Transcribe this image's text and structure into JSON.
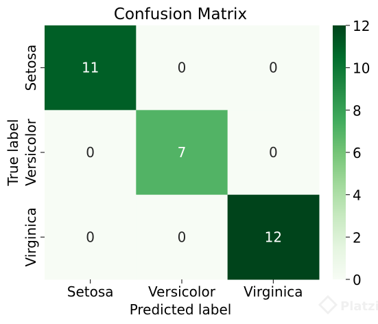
{
  "chart_data": {
    "type": "heatmap",
    "title": "Confusion Matrix",
    "xlabel": "Predicted label",
    "ylabel": "True label",
    "x_categories": [
      "Setosa",
      "Versicolor",
      "Virginica"
    ],
    "y_categories": [
      "Setosa",
      "Versicolor",
      "Virginica"
    ],
    "values": [
      [
        11,
        0,
        0
      ],
      [
        0,
        7,
        0
      ],
      [
        0,
        0,
        12
      ]
    ],
    "colorbar": {
      "range": [
        0,
        12
      ],
      "ticks": [
        0,
        2,
        4,
        6,
        8,
        10,
        12
      ],
      "colormap": "Greens",
      "low_color": "#f7fcf5",
      "high_color": "#00441b"
    }
  },
  "watermark": {
    "text": "Platzi"
  }
}
